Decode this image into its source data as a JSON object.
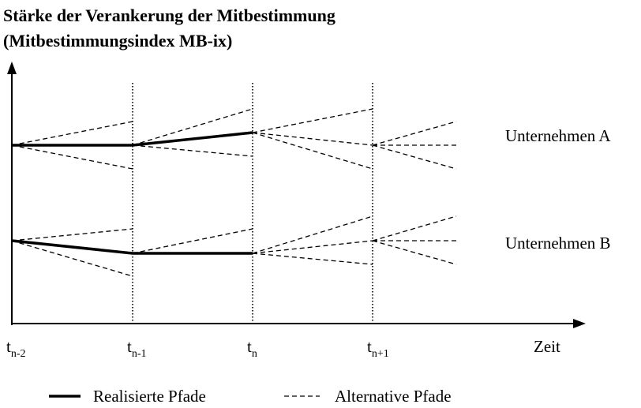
{
  "title": [
    "Stärke der Verankerung der Mitbestimmung",
    "(Mitbestimmungsindex MB-ix)"
  ],
  "time_labels": [
    {
      "base": "t",
      "sub": "n-2"
    },
    {
      "base": "t",
      "sub": "n-1"
    },
    {
      "base": "t",
      "sub": "n"
    },
    {
      "base": "t",
      "sub": "n+1"
    }
  ],
  "x_axis_label": "Zeit",
  "companies": [
    "Unternehmen A",
    "Unternehmen B"
  ],
  "legend": [
    "Realisierte Pfade",
    "Alternative Pfade"
  ]
}
